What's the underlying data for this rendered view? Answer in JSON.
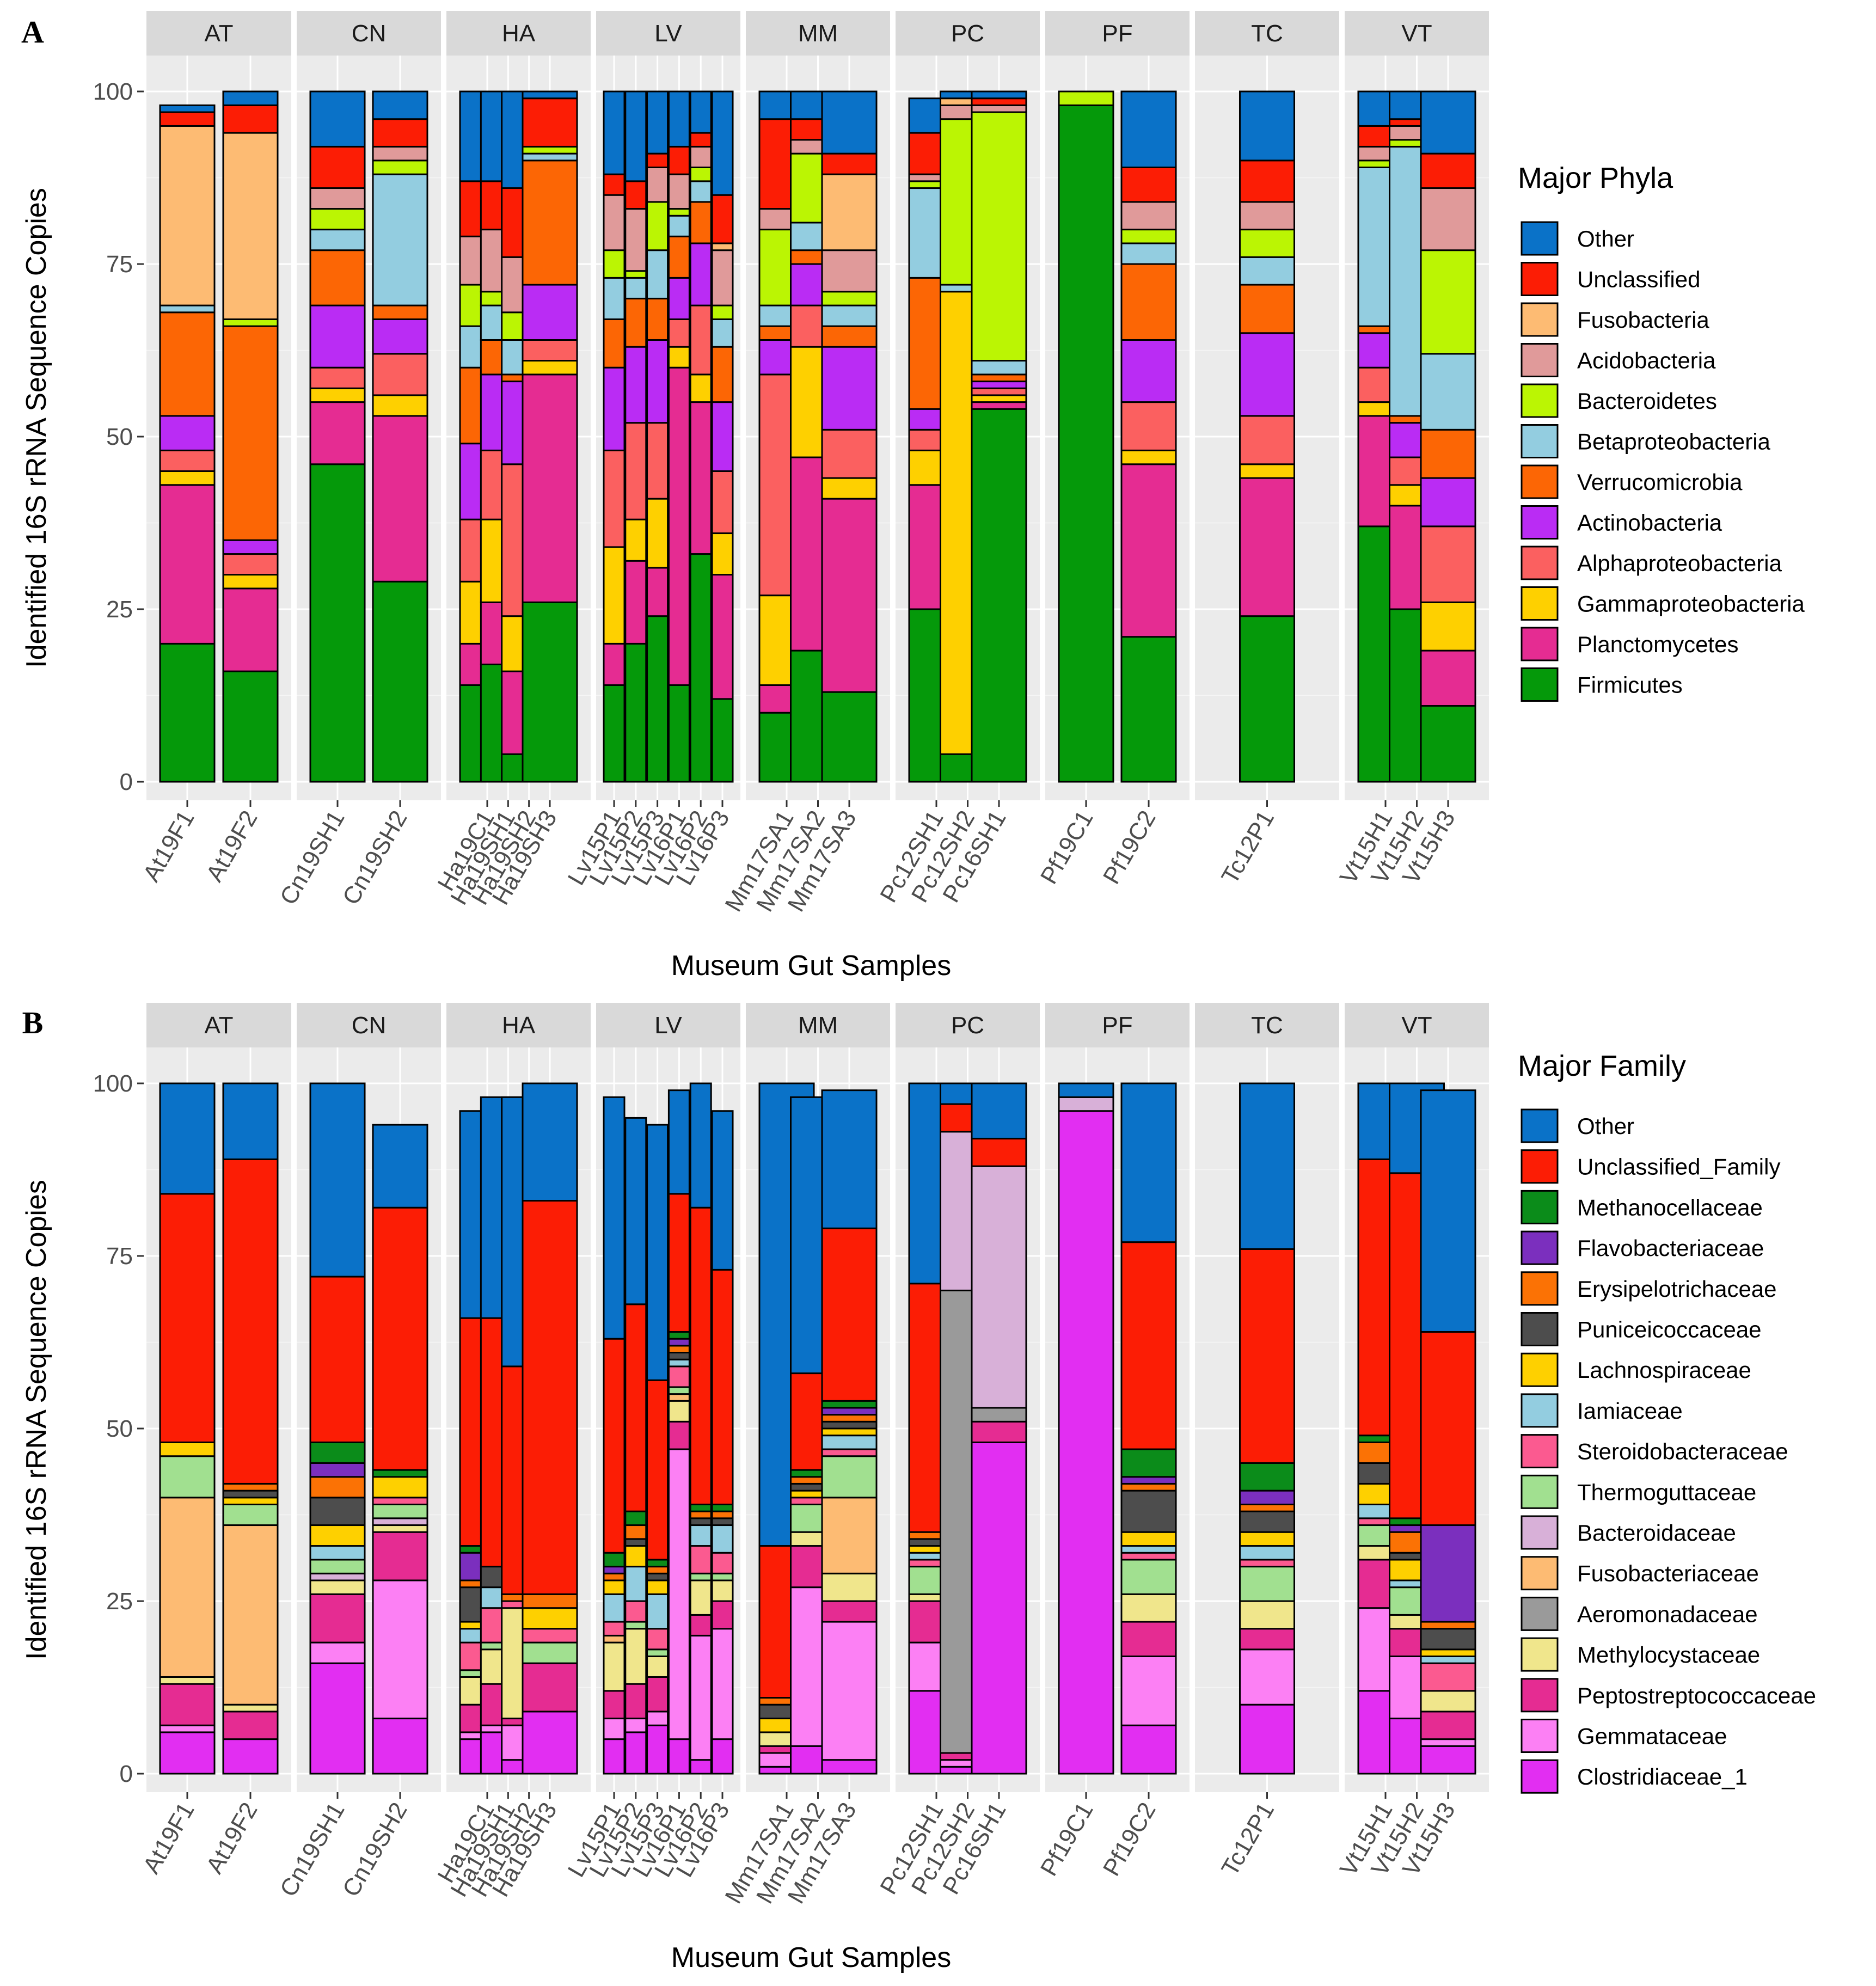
{
  "groups": [
    "AT",
    "CN",
    "HA",
    "LV",
    "MM",
    "PC",
    "PF",
    "TC",
    "VT"
  ],
  "samples": [
    {
      "group": "AT",
      "names": [
        "At19F1",
        "At19F2"
      ]
    },
    {
      "group": "CN",
      "names": [
        "Cn19SH1",
        "Cn19SH2"
      ]
    },
    {
      "group": "HA",
      "names": [
        "Ha19C1",
        "Ha19SH1",
        "Ha19SH2",
        "Ha19SH3"
      ]
    },
    {
      "group": "LV",
      "names": [
        "Lv15P1",
        "Lv15P2",
        "Lv15P3",
        "Lv16P1",
        "Lv16P2",
        "Lv16P3"
      ]
    },
    {
      "group": "MM",
      "names": [
        "Mm17SA1",
        "Mm17SA2",
        "Mm17SA3"
      ]
    },
    {
      "group": "PC",
      "names": [
        "Pc12SH1",
        "Pc12SH2",
        "Pc16SH1"
      ]
    },
    {
      "group": "PF",
      "names": [
        "Pf19C1",
        "Pf19C2"
      ]
    },
    {
      "group": "TC",
      "names": [
        "Tc12P1"
      ]
    },
    {
      "group": "VT",
      "names": [
        "Vt15H1",
        "Vt15H2",
        "Vt15H3"
      ]
    }
  ],
  "chart_data": [
    {
      "panel": "A",
      "type": "bar",
      "stacked": true,
      "xlabel": "Museum Gut Samples",
      "ylabel": "Identified 16S rRNA Sequence Copies",
      "ylim": [
        0,
        100
      ],
      "yticks": [
        0,
        25,
        50,
        75,
        100
      ],
      "legend_title": "Major Phyla",
      "legend_position": "right",
      "categories": [
        "Firmicutes",
        "Planctomycetes",
        "Gammaproteobacteria",
        "Alphaproteobacteria",
        "Actinobacteria",
        "Verrucomicrobia",
        "Betaproteobacteria",
        "Bacteroidetes",
        "Acidobacteria",
        "Fusobacteria",
        "Unclassified",
        "Other"
      ],
      "legend_order": [
        "Other",
        "Unclassified",
        "Fusobacteria",
        "Acidobacteria",
        "Bacteroidetes",
        "Betaproteobacteria",
        "Verrucomicrobia",
        "Actinobacteria",
        "Alphaproteobacteria",
        "Gammaproteobacteria",
        "Planctomycetes",
        "Firmicutes"
      ],
      "colors": {
        "Other": "#0a72c8",
        "Unclassified": "#fc1d05",
        "Fusobacteria": "#fdbb73",
        "Acidobacteria": "#e09a9a",
        "Bacteroidetes": "#bbf503",
        "Betaproteobacteria": "#93cde0",
        "Verrucomicrobia": "#fc6605",
        "Actinobacteria": "#ba2cf4",
        "Alphaproteobacteria": "#fb6060",
        "Gammaproteobacteria": "#fed000",
        "Planctomycetes": "#e52c92",
        "Firmicutes": "#05990a"
      },
      "samples": {
        "At19F1": [
          20,
          23,
          2,
          3,
          5,
          15,
          1,
          0,
          0,
          26,
          2,
          1
        ],
        "At19F2": [
          16,
          12,
          2,
          3,
          2,
          31,
          0,
          1,
          0,
          27,
          4,
          2
        ],
        "Cn19SH1": [
          46,
          9,
          2,
          3,
          9,
          8,
          3,
          3,
          3,
          0,
          6,
          8
        ],
        "Cn19SH2": [
          29,
          24,
          3,
          6,
          5,
          2,
          19,
          2,
          2,
          0,
          4,
          4
        ],
        "Ha19C1": [
          14,
          6,
          9,
          9,
          11,
          11,
          6,
          6,
          7,
          0,
          8,
          13
        ],
        "Ha19SH1": [
          17,
          9,
          12,
          10,
          11,
          5,
          5,
          2,
          9,
          0,
          7,
          13
        ],
        "Ha19SH2": [
          4,
          12,
          8,
          22,
          12,
          1,
          5,
          4,
          8,
          0,
          10,
          14
        ],
        "Ha19SH3": [
          26,
          33,
          2,
          3,
          8,
          18,
          1,
          1,
          0,
          0,
          7,
          1
        ],
        "Lv15P1": [
          14,
          6,
          14,
          14,
          12,
          7,
          6,
          4,
          8,
          0,
          3,
          12
        ],
        "Lv15P2": [
          20,
          12,
          6,
          14,
          11,
          7,
          3,
          1,
          9,
          0,
          4,
          13
        ],
        "Lv15P3": [
          24,
          7,
          10,
          11,
          12,
          6,
          7,
          7,
          5,
          0,
          2,
          9
        ],
        "Lv16P1": [
          14,
          46,
          3,
          4,
          6,
          6,
          3,
          1,
          5,
          0,
          4,
          8
        ],
        "Lv16P2": [
          33,
          22,
          4,
          10,
          9,
          6,
          3,
          2,
          3,
          0,
          2,
          6
        ],
        "Lv16P3": [
          12,
          18,
          6,
          9,
          10,
          8,
          4,
          2,
          8,
          1,
          7,
          15
        ],
        "Mm17SA1": [
          10,
          4,
          13,
          32,
          5,
          2,
          3,
          11,
          3,
          0,
          13,
          4
        ],
        "Mm17SA2": [
          19,
          28,
          16,
          6,
          6,
          2,
          4,
          10,
          2,
          0,
          3,
          4
        ],
        "Mm17SA3": [
          13,
          28,
          3,
          7,
          12,
          3,
          3,
          2,
          6,
          11,
          3,
          9
        ],
        "Pc12SH1": [
          25,
          18,
          5,
          3,
          3,
          19,
          13,
          1,
          1,
          0,
          6,
          5
        ],
        "Pc12SH2": [
          4,
          0,
          67,
          0,
          0,
          0,
          1,
          24,
          2,
          1,
          0,
          1
        ],
        "Pc16SH1": [
          54,
          1,
          1,
          1,
          1,
          1,
          2,
          36,
          1,
          0,
          1,
          1
        ],
        "Pf19C1": [
          98,
          0,
          0,
          0,
          0,
          0,
          0,
          2,
          0,
          0,
          0,
          0
        ],
        "Pf19C2": [
          21,
          25,
          2,
          7,
          9,
          11,
          3,
          2,
          4,
          0,
          5,
          11
        ],
        "Tc12P1": [
          24,
          20,
          2,
          7,
          12,
          7,
          4,
          4,
          4,
          0,
          6,
          10
        ],
        "Vt15H1": [
          37,
          16,
          2,
          5,
          5,
          1,
          23,
          1,
          2,
          0,
          3,
          5
        ],
        "Vt15H2": [
          25,
          15,
          3,
          4,
          5,
          1,
          39,
          1,
          2,
          0,
          1,
          4
        ],
        "Vt15H3": [
          11,
          8,
          7,
          11,
          7,
          7,
          11,
          15,
          9,
          0,
          5,
          9
        ]
      }
    },
    {
      "panel": "B",
      "type": "bar",
      "stacked": true,
      "xlabel": "Museum Gut Samples",
      "ylabel": "Identified 16S rRNA Sequence Copies",
      "ylim": [
        0,
        100
      ],
      "yticks": [
        0,
        25,
        50,
        75,
        100
      ],
      "legend_title": "Major Family",
      "legend_position": "right",
      "categories": [
        "Clostridiaceae_1",
        "Gemmataceae",
        "Peptostreptococcaceae",
        "Methylocystaceae",
        "Aeromonadaceae",
        "Fusobacteriaceae",
        "Bacteroidaceae",
        "Thermoguttaceae",
        "Steroidobacteraceae",
        "Iamiaceae",
        "Lachnospiraceae",
        "Puniceicoccaceae",
        "Erysipelotrichaceae",
        "Flavobacteriaceae",
        "Methanocellaceae",
        "Unclassified_Family",
        "Other"
      ],
      "legend_order": [
        "Other",
        "Unclassified_Family",
        "Methanocellaceae",
        "Flavobacteriaceae",
        "Erysipelotrichaceae",
        "Puniceicoccaceae",
        "Lachnospiraceae",
        "Iamiaceae",
        "Steroidobacteraceae",
        "Thermoguttaceae",
        "Bacteroidaceae",
        "Fusobacteriaceae",
        "Aeromonadaceae",
        "Methylocystaceae",
        "Peptostreptococcaceae",
        "Gemmataceae",
        "Clostridiaceae_1"
      ],
      "colors": {
        "Other": "#0a72c8",
        "Unclassified_Family": "#fc1d05",
        "Methanocellaceae": "#0b8c1a",
        "Flavobacteriaceae": "#7b2fbe",
        "Erysipelotrichaceae": "#fb7205",
        "Puniceicoccaceae": "#4d4d4d",
        "Lachnospiraceae": "#fed000",
        "Iamiaceae": "#93cde0",
        "Steroidobacteraceae": "#fb5a90",
        "Thermoguttaceae": "#a1e090",
        "Bacteroidaceae": "#d8b0d8",
        "Fusobacteriaceae": "#fdbb73",
        "Aeromonadaceae": "#9a9a9a",
        "Methylocystaceae": "#f0e68c",
        "Peptostreptococcaceae": "#e52c92",
        "Gemmataceae": "#fc80f4",
        "Clostridiaceae_1": "#e22ef2"
      },
      "samples": {
        "At19F1": [
          6,
          1,
          6,
          1,
          0,
          26,
          0,
          6,
          0,
          0,
          2,
          0,
          0,
          0,
          0,
          36,
          16
        ],
        "At19F2": [
          5,
          0,
          4,
          1,
          0,
          26,
          0,
          3,
          0,
          0,
          1,
          1,
          1,
          0,
          0,
          47,
          11
        ],
        "Cn19SH1": [
          16,
          3,
          7,
          2,
          0,
          0,
          1,
          2,
          0,
          2,
          3,
          4,
          3,
          2,
          3,
          24,
          28
        ],
        "Cn19SH2": [
          8,
          20,
          7,
          1,
          0,
          0,
          1,
          2,
          1,
          0,
          3,
          0,
          0,
          0,
          1,
          38,
          12
        ],
        "Ha19C1": [
          5,
          1,
          4,
          4,
          0,
          0,
          0,
          1,
          4,
          2,
          1,
          5,
          1,
          4,
          1,
          33,
          30
        ],
        "Ha19SH1": [
          6,
          1,
          6,
          5,
          0,
          0,
          0,
          1,
          5,
          3,
          0,
          3,
          0,
          0,
          0,
          36,
          32
        ],
        "Ha19SH2": [
          2,
          5,
          1,
          16,
          0,
          0,
          0,
          0,
          1,
          0,
          0,
          0,
          1,
          0,
          0,
          33,
          39
        ],
        "Ha19SH3": [
          9,
          0,
          7,
          0,
          0,
          0,
          0,
          3,
          2,
          0,
          3,
          0,
          2,
          0,
          0,
          57,
          17
        ],
        "Lv15P1": [
          5,
          3,
          4,
          7,
          0,
          1,
          0,
          0,
          2,
          4,
          2,
          0,
          1,
          1,
          2,
          31,
          35
        ],
        "Lv15P2": [
          6,
          2,
          5,
          8,
          0,
          0,
          0,
          1,
          3,
          5,
          3,
          1,
          2,
          0,
          2,
          30,
          27
        ],
        "Lv15P3": [
          7,
          2,
          5,
          3,
          0,
          0,
          0,
          1,
          3,
          5,
          2,
          1,
          1,
          0,
          1,
          26,
          37
        ],
        "Lv16P1": [
          5,
          42,
          4,
          3,
          0,
          1,
          0,
          1,
          3,
          1,
          0,
          1,
          1,
          1,
          1,
          20,
          15
        ],
        "Lv16P2": [
          2,
          18,
          3,
          5,
          0,
          0,
          0,
          1,
          4,
          3,
          0,
          1,
          1,
          0,
          1,
          43,
          18
        ],
        "Lv16P3": [
          5,
          16,
          4,
          3,
          0,
          0,
          0,
          1,
          3,
          4,
          0,
          1,
          1,
          0,
          1,
          34,
          23
        ],
        "Mm17SA1": [
          1,
          2,
          1,
          2,
          0,
          0,
          0,
          0,
          0,
          0,
          2,
          2,
          1,
          0,
          0,
          22,
          67
        ],
        "Mm17SA2": [
          4,
          23,
          6,
          2,
          0,
          0,
          0,
          4,
          1,
          0,
          1,
          1,
          1,
          0,
          1,
          14,
          40
        ],
        "Mm17SA3": [
          2,
          20,
          3,
          4,
          0,
          11,
          0,
          6,
          1,
          2,
          1,
          1,
          1,
          1,
          1,
          25,
          20
        ],
        "Pc12SH1": [
          12,
          7,
          6,
          1,
          0,
          0,
          0,
          4,
          1,
          1,
          1,
          1,
          1,
          0,
          0,
          36,
          29
        ],
        "Pc12SH2": [
          1,
          1,
          1,
          0,
          67,
          0,
          23,
          0,
          0,
          0,
          0,
          0,
          0,
          0,
          0,
          4,
          3
        ],
        "Pc16SH1": [
          48,
          0,
          3,
          0,
          2,
          0,
          35,
          0,
          0,
          0,
          0,
          0,
          0,
          0,
          0,
          4,
          8
        ],
        "Pf19C1": [
          96,
          0,
          0,
          0,
          0,
          0,
          2,
          0,
          0,
          0,
          0,
          0,
          0,
          0,
          0,
          0,
          2
        ],
        "Pf19C2": [
          7,
          10,
          5,
          4,
          0,
          0,
          0,
          5,
          1,
          1,
          2,
          6,
          1,
          1,
          4,
          30,
          23
        ],
        "Tc12P1": [
          10,
          8,
          3,
          4,
          0,
          0,
          0,
          5,
          1,
          2,
          2,
          3,
          1,
          2,
          4,
          31,
          24
        ],
        "Vt15H1": [
          12,
          12,
          7,
          2,
          0,
          0,
          0,
          3,
          1,
          2,
          3,
          3,
          3,
          0,
          1,
          40,
          11
        ],
        "Vt15H2": [
          8,
          9,
          4,
          2,
          0,
          0,
          0,
          4,
          0,
          1,
          3,
          1,
          3,
          1,
          1,
          50,
          13
        ],
        "Vt15H3": [
          4,
          1,
          4,
          3,
          0,
          0,
          0,
          0,
          4,
          1,
          1,
          3,
          1,
          14,
          0,
          28,
          35
        ]
      }
    }
  ]
}
